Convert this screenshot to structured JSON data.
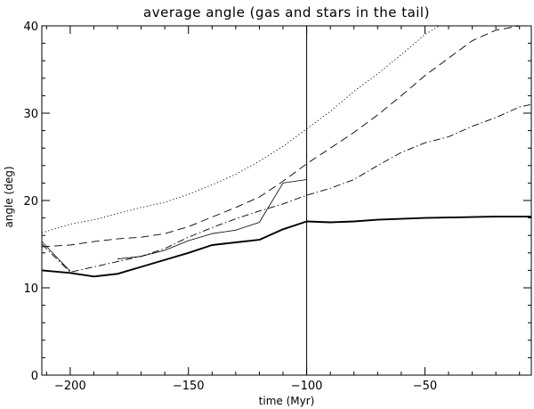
{
  "chart_data": {
    "type": "line",
    "title": "average angle (gas and stars in the tail)",
    "xlabel": "time (Myr)",
    "ylabel": "angle (deg)",
    "xlim": [
      -212,
      -5
    ],
    "ylim": [
      0,
      40
    ],
    "xticks": [
      -200,
      -150,
      -100,
      -50
    ],
    "yticks": [
      0,
      10,
      20,
      30,
      40
    ],
    "grid": false,
    "vline_x": -100,
    "series": [
      {
        "style": "thick-solid",
        "x": [
          -212,
          -200,
          -190,
          -180,
          -170,
          -160,
          -150,
          -140,
          -130,
          -120,
          -110,
          -100,
          -90,
          -80,
          -70,
          -60,
          -50,
          -40,
          -30,
          -20,
          -10,
          -5
        ],
        "y": [
          12.0,
          11.7,
          11.3,
          11.6,
          12.4,
          13.2,
          14.0,
          14.9,
          15.2,
          15.5,
          16.7,
          17.6,
          17.5,
          17.6,
          17.8,
          17.9,
          18.0,
          18.05,
          18.1,
          18.15,
          18.15,
          18.15
        ]
      },
      {
        "style": "thin-solid",
        "x": [
          -212,
          -200
        ],
        "y": [
          15.3,
          11.9
        ]
      },
      {
        "style": "thin-solid",
        "x": [
          -180,
          -170,
          -160,
          -150,
          -140,
          -130,
          -120,
          -110,
          -100
        ],
        "y": [
          13.3,
          13.6,
          14.3,
          15.4,
          16.2,
          16.6,
          17.5,
          22.0,
          22.4
        ]
      },
      {
        "style": "dotted",
        "x": [
          -212,
          -200,
          -190,
          -180,
          -170,
          -160,
          -150,
          -140,
          -130,
          -120,
          -110,
          -100,
          -90,
          -80,
          -70,
          -60,
          -50,
          -44
        ],
        "y": [
          16.3,
          17.3,
          17.8,
          18.5,
          19.2,
          19.8,
          20.7,
          21.8,
          23.0,
          24.5,
          26.2,
          28.2,
          30.2,
          32.5,
          34.5,
          36.7,
          39.0,
          40.0
        ]
      },
      {
        "style": "dashed",
        "x": [
          -212,
          -200,
          -190,
          -180,
          -170,
          -160,
          -150,
          -140,
          -130,
          -120,
          -110,
          -100,
          -90,
          -80,
          -70,
          -60,
          -50,
          -40,
          -30,
          -20,
          -10,
          -5
        ],
        "y": [
          14.7,
          14.9,
          15.3,
          15.6,
          15.8,
          16.2,
          17.0,
          18.1,
          19.2,
          20.4,
          22.2,
          24.2,
          26.0,
          27.8,
          29.8,
          32.0,
          34.3,
          36.3,
          38.3,
          39.5,
          40.0,
          40.0
        ]
      },
      {
        "style": "dash-dot",
        "x": [
          -212,
          -200,
          -190,
          -180,
          -170,
          -160,
          -150,
          -140,
          -130,
          -120,
          -110,
          -100,
          -90,
          -80,
          -70,
          -60,
          -50,
          -40,
          -30,
          -20,
          -10,
          -5
        ],
        "y": [
          15.0,
          11.8,
          12.4,
          13.0,
          13.6,
          14.5,
          15.8,
          16.9,
          17.9,
          18.8,
          19.6,
          20.6,
          21.4,
          22.4,
          24.0,
          25.5,
          26.6,
          27.3,
          28.5,
          29.5,
          30.7,
          31.0
        ]
      }
    ]
  }
}
